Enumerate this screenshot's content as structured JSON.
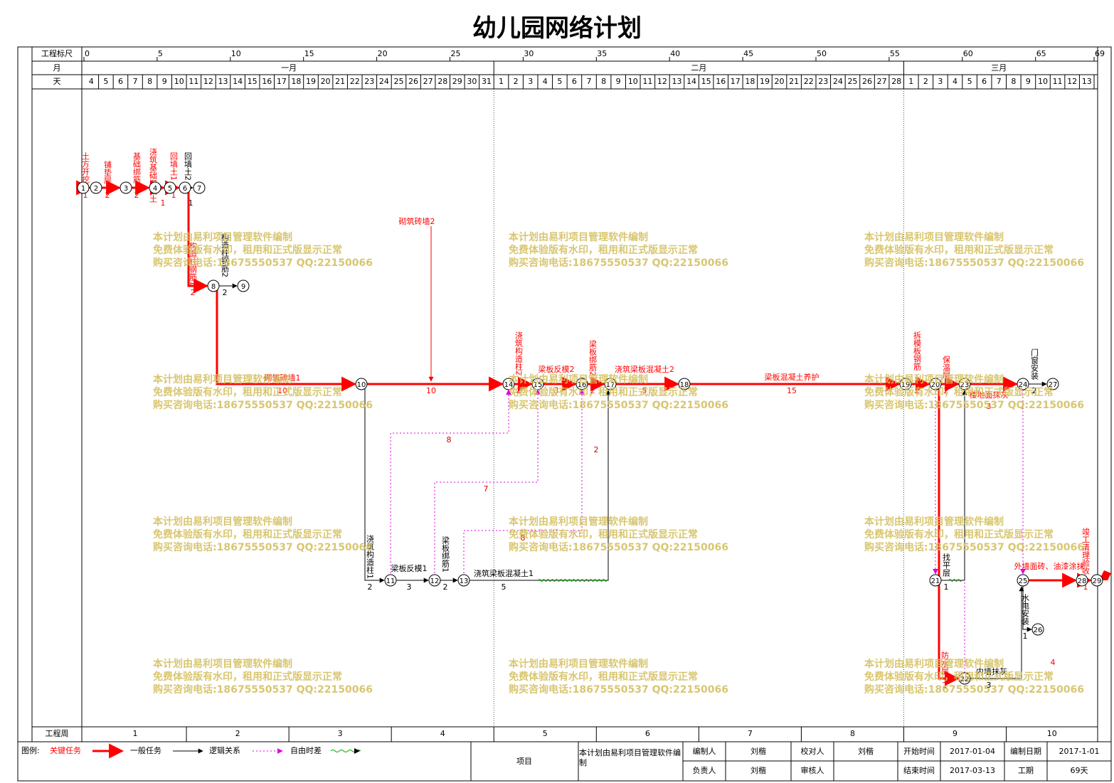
{
  "title": "幼儿园网络计划",
  "scale": {
    "label": "工程标尺",
    "ticks": [
      0,
      5,
      10,
      15,
      20,
      25,
      30,
      35,
      40,
      45,
      50,
      55,
      60,
      65,
      69
    ]
  },
  "month_row": {
    "label": "月",
    "months": [
      "一月",
      "二月",
      "三月"
    ]
  },
  "day_row": {
    "label": "天",
    "days": [
      4,
      5,
      6,
      7,
      8,
      9,
      10,
      11,
      12,
      13,
      14,
      15,
      16,
      17,
      18,
      19,
      20,
      21,
      22,
      23,
      24,
      25,
      26,
      27,
      28,
      29,
      30,
      31,
      1,
      2,
      3,
      4,
      5,
      6,
      7,
      8,
      9,
      10,
      11,
      12,
      13,
      14,
      15,
      16,
      17,
      18,
      19,
      20,
      21,
      22,
      23,
      24,
      25,
      26,
      27,
      28,
      1,
      2,
      3,
      4,
      5,
      6,
      7,
      8,
      9,
      10,
      11,
      12,
      13
    ]
  },
  "week_row": {
    "label": "工程周",
    "weeks": [
      1,
      2,
      3,
      4,
      5,
      6,
      7,
      8,
      9,
      10
    ]
  },
  "nodes": [
    "1",
    "2",
    "3",
    "4",
    "5",
    "6",
    "7",
    "8",
    "9",
    "10",
    "11",
    "12",
    "13",
    "14",
    "15",
    "16",
    "17",
    "18",
    "19",
    "20",
    "21",
    "22",
    "23",
    "24",
    "25",
    "26",
    "27",
    "28",
    "29"
  ],
  "activities": [
    {
      "name": "土方开挖",
      "duration": 1
    },
    {
      "name": "铺垫层",
      "duration": 2
    },
    {
      "name": "基础绑筋",
      "duration": 2
    },
    {
      "name": "浇筑基础混凝土",
      "duration": 1
    },
    {
      "name": "回填土1",
      "duration": 1
    },
    {
      "name": "回填土2",
      "duration": 1
    },
    {
      "name": "构造柱钢筋1",
      "duration": 2
    },
    {
      "name": "构造柱钢筋2",
      "duration": 2
    },
    {
      "name": "砌筑砖墙1",
      "duration": 10
    },
    {
      "name": "砌筑砖墙2",
      "duration": 10
    },
    {
      "name": "浇筑构造柱1",
      "duration": 2
    },
    {
      "name": "梁板反模1",
      "duration": 3
    },
    {
      "name": "梁板绑筋1",
      "duration": 2
    },
    {
      "name": "浇筑梁板混凝土1",
      "duration": 5
    },
    {
      "name": "浇筑构造柱2",
      "duration": 2
    },
    {
      "name": "梁板反模2",
      "duration": 3
    },
    {
      "name": "梁板绑筋2",
      "duration": 2
    },
    {
      "name": "浇筑梁板混凝土2",
      "duration": 5
    },
    {
      "name": "梁板混凝土养护",
      "duration": 15
    },
    {
      "name": "拆模板钢筋",
      "duration": 2
    },
    {
      "name": "保温层",
      "duration": 2
    },
    {
      "name": "找平层",
      "duration": 1
    },
    {
      "name": "防水层",
      "duration": 2
    },
    {
      "name": "楼地面抹灰",
      "duration": 3
    },
    {
      "name": "门窗安装",
      "duration": 2
    },
    {
      "name": "内墙抹灰",
      "duration": 3
    },
    {
      "name": "外墙面砖、油漆涂抹",
      "duration": 4
    },
    {
      "name": "水电安装",
      "duration": 1
    },
    {
      "name": "竣工清理验收",
      "duration": 1
    }
  ],
  "free_floats": [
    8,
    7,
    8,
    2
  ],
  "watermark": [
    "本计划由易利项目管理软件编制",
    "免费体验版有水印，租用和正式版显示正常",
    "购买咨询电话:18675550537 QQ:22150066"
  ],
  "legend": {
    "title": "图例:",
    "critical": "关键任务",
    "normal": "一般任务",
    "logic": "逻辑关系",
    "float": "自由时差"
  },
  "footer": {
    "project_label": "项目",
    "project": "本计划由易利项目管理软件编制",
    "editor_label": "编制人",
    "editor": "刘楷",
    "checker_label": "校对人",
    "checker": "刘楷",
    "start_label": "开始时间",
    "start": "2017-01-04",
    "date_label": "编制日期",
    "date": "2017-1-01",
    "owner_label": "负责人",
    "owner": "刘楷",
    "reviewer_label": "审核人",
    "end_label": "结束时间",
    "end": "2017-03-13",
    "duration_label": "工期",
    "duration": "69天"
  }
}
